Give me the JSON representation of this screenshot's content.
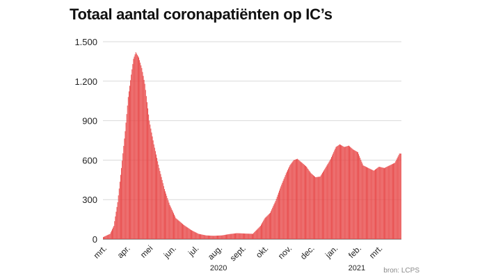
{
  "chart_data": {
    "type": "bar",
    "title": "Totaal aantal coronapatiënten op IC’s",
    "xlabel": "",
    "ylabel": "",
    "ylim": [
      0,
      1500
    ],
    "yticks": [
      0,
      300,
      600,
      900,
      1200,
      1500
    ],
    "ytick_labels": [
      "0",
      "300",
      "600",
      "900",
      "1.200",
      "1.500"
    ],
    "grid": "horizontal",
    "bar_color": "#e84a4a",
    "months": [
      {
        "label": "mrt.",
        "start": "2020-03-01"
      },
      {
        "label": "apr.",
        "start": "2020-04-01"
      },
      {
        "label": "mei",
        "start": "2020-05-01"
      },
      {
        "label": "jun.",
        "start": "2020-06-01"
      },
      {
        "label": "jul.",
        "start": "2020-07-01"
      },
      {
        "label": "aug.",
        "start": "2020-08-01"
      },
      {
        "label": "sept.",
        "start": "2020-09-01"
      },
      {
        "label": "okt.",
        "start": "2020-10-01"
      },
      {
        "label": "nov.",
        "start": "2020-11-01"
      },
      {
        "label": "dec.",
        "start": "2020-12-01"
      },
      {
        "label": "jan.",
        "start": "2021-01-01"
      },
      {
        "label": "feb.",
        "start": "2021-02-01"
      },
      {
        "label": "mrt.",
        "start": "2021-03-01"
      }
    ],
    "years": [
      {
        "label": "2020",
        "date": "2020-08-01"
      },
      {
        "label": "2021",
        "date": "2021-01-31"
      }
    ],
    "series": [
      {
        "x": [
          "2020-03-01",
          "2020-03-10",
          "2020-03-15",
          "2020-03-20",
          "2020-03-25",
          "2020-03-30",
          "2020-04-03",
          "2020-04-07",
          "2020-04-10",
          "2020-04-13",
          "2020-04-17",
          "2020-04-21",
          "2020-04-25",
          "2020-05-01",
          "2020-05-07",
          "2020-05-14",
          "2020-05-21",
          "2020-05-28",
          "2020-06-05",
          "2020-06-15",
          "2020-06-25",
          "2020-07-05",
          "2020-07-15",
          "2020-07-25",
          "2020-08-05",
          "2020-08-15",
          "2020-08-25",
          "2020-09-05",
          "2020-09-15",
          "2020-09-25",
          "2020-10-01",
          "2020-10-08",
          "2020-10-15",
          "2020-10-22",
          "2020-10-29",
          "2020-11-03",
          "2020-11-08",
          "2020-11-13",
          "2020-11-18",
          "2020-11-25",
          "2020-12-01",
          "2020-12-07",
          "2020-12-13",
          "2020-12-20",
          "2020-12-27",
          "2021-01-03",
          "2021-01-08",
          "2021-01-14",
          "2021-01-20",
          "2021-01-26",
          "2021-02-01",
          "2021-02-08",
          "2021-02-15",
          "2021-02-22",
          "2021-03-01",
          "2021-03-08",
          "2021-03-15",
          "2021-03-22",
          "2021-03-28"
        ],
        "values": [
          15,
          40,
          100,
          280,
          540,
          820,
          1080,
          1250,
          1370,
          1420,
          1380,
          1300,
          1180,
          900,
          720,
          540,
          380,
          260,
          160,
          110,
          70,
          40,
          28,
          25,
          28,
          38,
          45,
          42,
          40,
          100,
          160,
          200,
          290,
          400,
          500,
          560,
          600,
          610,
          585,
          550,
          500,
          470,
          475,
          540,
          610,
          700,
          720,
          700,
          710,
          680,
          660,
          560,
          540,
          520,
          550,
          540,
          560,
          580,
          650
        ]
      }
    ]
  },
  "source": "bron: LCPS"
}
